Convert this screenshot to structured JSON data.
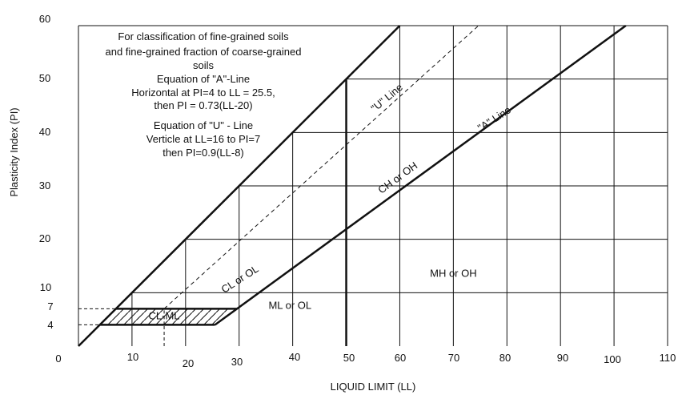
{
  "chart_data": {
    "type": "line",
    "title": "",
    "xlabel": "LIQUID LIMIT (LL)",
    "ylabel": "Plasticity Index (PI)",
    "xlim": [
      0,
      110
    ],
    "ylim": [
      0,
      60
    ],
    "x_ticks": [
      "0",
      "10",
      "20",
      "30",
      "40",
      "50",
      "60",
      "70",
      "80",
      "90",
      "100",
      "110"
    ],
    "y_ticks": [
      "4",
      "7",
      "10",
      "20",
      "30",
      "40",
      "50",
      "60"
    ],
    "grid": true,
    "notes": [
      "For classification of fine-grained soils",
      "and fine-grained fraction of coarse-grained",
      "soils",
      "Equation of \"A\"-Line",
      "Horizontal at PI=4 to LL = 25.5,",
      "then PI = 0.73(LL-20)",
      "Equation of \"U\" - Line",
      "Verticle at LL=16 to PI=7",
      "then PI=0.9(LL-8)"
    ],
    "series": [
      {
        "name": "\"A\" Line",
        "x": [
          4,
          25.5,
          102.2
        ],
        "y": [
          4,
          4,
          60
        ],
        "style": "solid"
      },
      {
        "name": "\"U\" Line",
        "x": [
          16,
          16,
          74.7
        ],
        "y": [
          0,
          7,
          60
        ],
        "style": "dashed"
      }
    ],
    "boundaries": {
      "upper_limit": {
        "x": [
          0,
          60
        ],
        "y": [
          0,
          60
        ]
      },
      "ll50_vertical": {
        "x": [
          50,
          50
        ],
        "y": [
          0,
          50
        ]
      }
    },
    "zones": [
      {
        "label": "CH or OH",
        "x": 60,
        "y": 31,
        "angle": -36
      },
      {
        "label": "CL or OL",
        "x": 30.5,
        "y": 12,
        "angle": -33
      },
      {
        "label": "MH or OH",
        "x": 70,
        "y": 13,
        "angle": 0
      },
      {
        "label": "ML or OL",
        "x": 39.5,
        "y": 7,
        "angle": 0
      },
      {
        "label": "CL-ML",
        "x": 16,
        "y": 5,
        "angle": 0
      }
    ],
    "line_labels": [
      {
        "label": "\"U\" Line",
        "x": 58,
        "y": 46,
        "angle": -40
      },
      {
        "label": "\"A\" Line",
        "x": 78,
        "y": 42,
        "angle": -33
      }
    ]
  }
}
